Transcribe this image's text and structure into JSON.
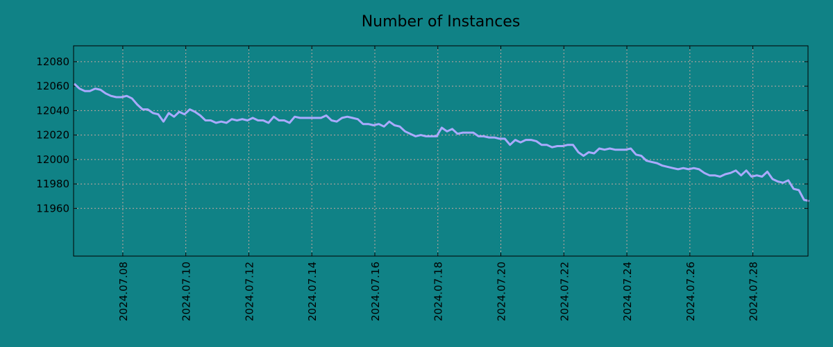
{
  "chart_data": {
    "type": "line",
    "title": "Number of Instances",
    "xlabel": "",
    "ylabel": "",
    "x_start": "2024-07-06T11:00",
    "x_interval_hours": 4,
    "xlim": [
      "2024-07-06T10:30",
      "2024-07-29T18:00"
    ],
    "ylim": [
      11921,
      12093
    ],
    "grid": true,
    "y_ticks": [
      11960,
      11980,
      12000,
      12020,
      12040,
      12060,
      12080
    ],
    "x_ticks": [
      "2024.07.08",
      "2024.07.10",
      "2024.07.12",
      "2024.07.14",
      "2024.07.16",
      "2024.07.18",
      "2024.07.20",
      "2024.07.22",
      "2024.07.24",
      "2024.07.26",
      "2024.07.28"
    ],
    "series": [
      {
        "name": "Number of Instances",
        "color": "#aaaaff",
        "values": [
          12062,
          12058,
          12056,
          12056,
          12058,
          12057,
          12054,
          12052,
          12051,
          12051,
          12052,
          12050,
          12045,
          12041,
          12041,
          12038,
          12037,
          12031,
          12038,
          12035,
          12039,
          12037,
          12041,
          12039,
          12036,
          12032,
          12032,
          12030,
          12031,
          12030,
          12033,
          12032,
          12033,
          12032,
          12034,
          12032,
          12032,
          12030,
          12035,
          12032,
          12032,
          12030,
          12035,
          12034,
          12034,
          12034,
          12034,
          12034,
          12036,
          12032,
          12031,
          12034,
          12035,
          12034,
          12033,
          12029,
          12029,
          12028,
          12029,
          12027,
          12031,
          12028,
          12027,
          12023,
          12021,
          12019,
          12020,
          12019,
          12019,
          12019,
          12026,
          12023,
          12025,
          12021,
          12022,
          12022,
          12022,
          12019,
          12019,
          12018,
          12018,
          12017,
          12017,
          12012,
          12016,
          12014,
          12016,
          12016,
          12015,
          12012,
          12012,
          12010,
          12011,
          12011,
          12012,
          12012,
          12006,
          12003,
          12006,
          12005,
          12009,
          12008,
          12009,
          12008,
          12008,
          12008,
          12009,
          12004,
          12003,
          11999,
          11998,
          11997,
          11995,
          11994,
          11993,
          11992,
          11993,
          11992,
          11993,
          11992,
          11989,
          11987,
          11987,
          11986,
          11988,
          11989,
          11991,
          11987,
          11991,
          11986,
          11987,
          11986,
          11990,
          11984,
          11982,
          11981,
          11983,
          11976,
          11975,
          11967,
          11966
        ]
      }
    ]
  },
  "colors": {
    "background": "#108286",
    "grid": "#c8a8a0",
    "line": "#aaaaff"
  }
}
